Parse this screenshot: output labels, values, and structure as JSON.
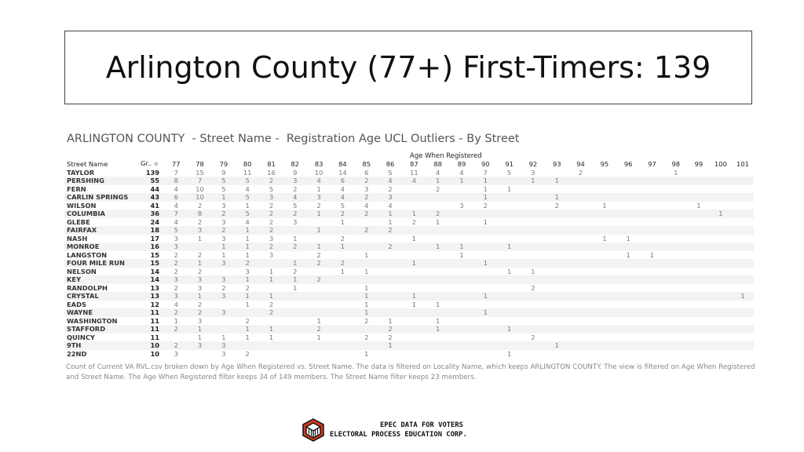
{
  "slide": {
    "title": "Arlington County (77+) First-Timers: 139"
  },
  "viz": {
    "title": "ARLINGTON COUNTY  - Street Name -  Registration Age UCL Outliers - By Street",
    "caption": "Count of Current VA RVL.csv broken down by Age When Registered vs. Street Name. The data is filtered on Locality Name, which keeps ARLINGTON COUNTY. The view is filtered on Age When Registered and Street Name. The Age When Registered filter keeps 34 of 149 members. The Street Name filter keeps 23 members."
  },
  "footer": {
    "line1": "EPEC DATA FOR VOTERS",
    "line2": "ELECTORAL PROCESS EDUCATION CORP.",
    "logo_icon": "cube-logo-icon"
  },
  "chart_data": {
    "type": "table",
    "column_axis_label": "Age When Registered",
    "row_header": "Street Name",
    "total_header": "Gr..",
    "sort_icon": "sort-descending-icon",
    "columns": [
      "77",
      "78",
      "79",
      "80",
      "81",
      "82",
      "83",
      "84",
      "85",
      "86",
      "87",
      "88",
      "89",
      "90",
      "91",
      "92",
      "93",
      "94",
      "95",
      "96",
      "97",
      "98",
      "99",
      "100",
      "101"
    ],
    "rows": [
      {
        "street": "TAYLOR",
        "total": "139",
        "cells": [
          "7",
          "15",
          "9",
          "11",
          "16",
          "9",
          "10",
          "14",
          "6",
          "5",
          "11",
          "4",
          "4",
          "7",
          "5",
          "3",
          "",
          "2",
          "",
          "",
          "",
          "1",
          "",
          "",
          ""
        ]
      },
      {
        "street": "PERSHING",
        "total": "55",
        "cells": [
          "8",
          "7",
          "5",
          "5",
          "2",
          "3",
          "4",
          "6",
          "2",
          "4",
          "4",
          "1",
          "1",
          "1",
          "",
          "1",
          "1",
          "",
          "",
          "",
          "",
          "",
          "",
          "",
          ""
        ]
      },
      {
        "street": "FERN",
        "total": "44",
        "cells": [
          "4",
          "10",
          "5",
          "4",
          "5",
          "2",
          "1",
          "4",
          "3",
          "2",
          "",
          "2",
          "",
          "1",
          "1",
          "",
          "",
          "",
          "",
          "",
          "",
          "",
          "",
          "",
          ""
        ]
      },
      {
        "street": "CARLIN SPRINGS",
        "total": "43",
        "cells": [
          "6",
          "10",
          "1",
          "5",
          "3",
          "4",
          "3",
          "4",
          "2",
          "3",
          "",
          "",
          "",
          "1",
          "",
          "",
          "1",
          "",
          "",
          "",
          "",
          "",
          "",
          "",
          ""
        ]
      },
      {
        "street": "WILSON",
        "total": "41",
        "cells": [
          "4",
          "2",
          "3",
          "1",
          "2",
          "5",
          "2",
          "5",
          "4",
          "4",
          "",
          "",
          "3",
          "2",
          "",
          "",
          "2",
          "",
          "1",
          "",
          "",
          "",
          "1",
          "",
          ""
        ]
      },
      {
        "street": "COLUMBIA",
        "total": "36",
        "cells": [
          "7",
          "8",
          "2",
          "5",
          "2",
          "2",
          "1",
          "2",
          "2",
          "1",
          "1",
          "2",
          "",
          "",
          "",
          "",
          "",
          "",
          "",
          "",
          "",
          "",
          "",
          "1",
          ""
        ]
      },
      {
        "street": "GLEBE",
        "total": "24",
        "cells": [
          "4",
          "2",
          "3",
          "4",
          "2",
          "3",
          "",
          "1",
          "",
          "1",
          "2",
          "1",
          "",
          "1",
          "",
          "",
          "",
          "",
          "",
          "",
          "",
          "",
          "",
          "",
          ""
        ]
      },
      {
        "street": "FAIRFAX",
        "total": "18",
        "cells": [
          "5",
          "3",
          "2",
          "1",
          "2",
          "",
          "1",
          "",
          "2",
          "2",
          "",
          "",
          "",
          "",
          "",
          "",
          "",
          "",
          "",
          "",
          "",
          "",
          "",
          "",
          ""
        ]
      },
      {
        "street": "NASH",
        "total": "17",
        "cells": [
          "3",
          "1",
          "3",
          "1",
          "3",
          "1",
          "",
          "2",
          "",
          "",
          "1",
          "",
          "",
          "",
          "",
          "",
          "",
          "",
          "1",
          "1",
          "",
          "",
          "",
          "",
          ""
        ]
      },
      {
        "street": "MONROE",
        "total": "16",
        "cells": [
          "3",
          "",
          "1",
          "1",
          "2",
          "2",
          "1",
          "1",
          "",
          "2",
          "",
          "1",
          "1",
          "",
          "1",
          "",
          "",
          "",
          "",
          "",
          "",
          "",
          "",
          "",
          ""
        ]
      },
      {
        "street": "LANGSTON",
        "total": "15",
        "cells": [
          "2",
          "2",
          "1",
          "1",
          "3",
          "",
          "2",
          "",
          "1",
          "",
          "",
          "",
          "1",
          "",
          "",
          "",
          "",
          "",
          "",
          "1",
          "1",
          "",
          "",
          "",
          ""
        ]
      },
      {
        "street": "FOUR MILE RUN",
        "total": "15",
        "cells": [
          "2",
          "1",
          "3",
          "2",
          "",
          "1",
          "2",
          "2",
          "",
          "",
          "1",
          "",
          "",
          "1",
          "",
          "",
          "",
          "",
          "",
          "",
          "",
          "",
          "",
          "",
          ""
        ]
      },
      {
        "street": "NELSON",
        "total": "14",
        "cells": [
          "2",
          "2",
          "",
          "3",
          "1",
          "2",
          "",
          "1",
          "1",
          "",
          "",
          "",
          "",
          "",
          "1",
          "1",
          "",
          "",
          "",
          "",
          "",
          "",
          "",
          "",
          ""
        ]
      },
      {
        "street": "KEY",
        "total": "14",
        "cells": [
          "3",
          "3",
          "3",
          "1",
          "1",
          "1",
          "2",
          "",
          "",
          "",
          "",
          "",
          "",
          "",
          "",
          "",
          "",
          "",
          "",
          "",
          "",
          "",
          "",
          "",
          ""
        ]
      },
      {
        "street": "RANDOLPH",
        "total": "13",
        "cells": [
          "2",
          "3",
          "2",
          "2",
          "",
          "1",
          "",
          "",
          "1",
          "",
          "",
          "",
          "",
          "",
          "",
          "2",
          "",
          "",
          "",
          "",
          "",
          "",
          "",
          "",
          ""
        ]
      },
      {
        "street": "CRYSTAL",
        "total": "13",
        "cells": [
          "3",
          "1",
          "3",
          "1",
          "1",
          "",
          "",
          "",
          "1",
          "",
          "1",
          "",
          "",
          "1",
          "",
          "",
          "",
          "",
          "",
          "",
          "",
          "",
          "",
          "",
          "1"
        ]
      },
      {
        "street": "EADS",
        "total": "12",
        "cells": [
          "4",
          "2",
          "",
          "1",
          "2",
          "",
          "",
          "",
          "1",
          "",
          "1",
          "1",
          "",
          "",
          "",
          "",
          "",
          "",
          "",
          "",
          "",
          "",
          "",
          "",
          ""
        ]
      },
      {
        "street": "WAYNE",
        "total": "11",
        "cells": [
          "2",
          "2",
          "3",
          "",
          "2",
          "",
          "",
          "",
          "1",
          "",
          "",
          "",
          "",
          "1",
          "",
          "",
          "",
          "",
          "",
          "",
          "",
          "",
          "",
          "",
          ""
        ]
      },
      {
        "street": "WASHINGTON",
        "total": "11",
        "cells": [
          "1",
          "3",
          "",
          "2",
          "",
          "",
          "1",
          "",
          "2",
          "1",
          "",
          "1",
          "",
          "",
          "",
          "",
          "",
          "",
          "",
          "",
          "",
          "",
          "",
          "",
          ""
        ]
      },
      {
        "street": "STAFFORD",
        "total": "11",
        "cells": [
          "2",
          "1",
          "",
          "1",
          "1",
          "",
          "2",
          "",
          "",
          "2",
          "",
          "1",
          "",
          "",
          "1",
          "",
          "",
          "",
          "",
          "",
          "",
          "",
          "",
          "",
          ""
        ]
      },
      {
        "street": "QUINCY",
        "total": "11",
        "cells": [
          "",
          "1",
          "1",
          "1",
          "1",
          "",
          "1",
          "",
          "2",
          "2",
          "",
          "",
          "",
          "",
          "",
          "2",
          "",
          "",
          "",
          "",
          "",
          "",
          "",
          "",
          ""
        ]
      },
      {
        "street": "9TH",
        "total": "10",
        "cells": [
          "2",
          "3",
          "3",
          "",
          "",
          "",
          "",
          "",
          "",
          "1",
          "",
          "",
          "",
          "",
          "",
          "",
          "1",
          "",
          "",
          "",
          "",
          "",
          "",
          "",
          ""
        ]
      },
      {
        "street": "22ND",
        "total": "10",
        "cells": [
          "3",
          "",
          "3",
          "2",
          "",
          "",
          "",
          "",
          "1",
          "",
          "",
          "",
          "",
          "",
          "1",
          "",
          "",
          "",
          "",
          "",
          "",
          "",
          "",
          "",
          ""
        ]
      }
    ]
  }
}
